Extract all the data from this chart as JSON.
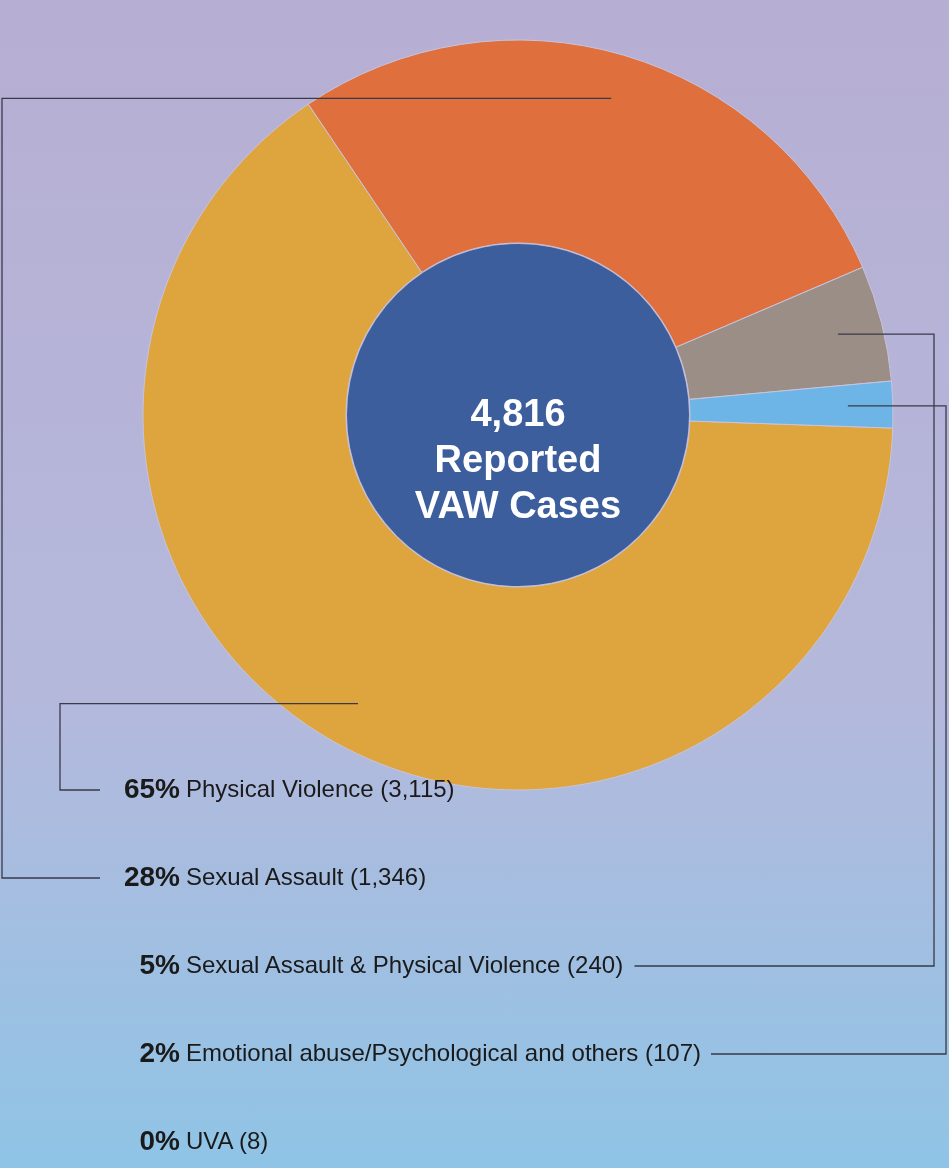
{
  "chart_data": {
    "type": "donut",
    "title": "4,816\nReported\nVAW Cases",
    "categories": [
      "Physical Violence (3,115)",
      "Sexual Assault (1,346)",
      "Sexual Assault & Physical Violence (240)",
      "Emotional abuse/Psychological and others (107)",
      "UVA (8)"
    ],
    "values": [
      65,
      28,
      5,
      2,
      0
    ],
    "value_labels": [
      "65%",
      "28%",
      "5%",
      "2%",
      "0%"
    ],
    "colors": [
      "#dea53f",
      "#df6f3d",
      "#9b8e86",
      "#6db5e6",
      "#f0d36a"
    ]
  }
}
